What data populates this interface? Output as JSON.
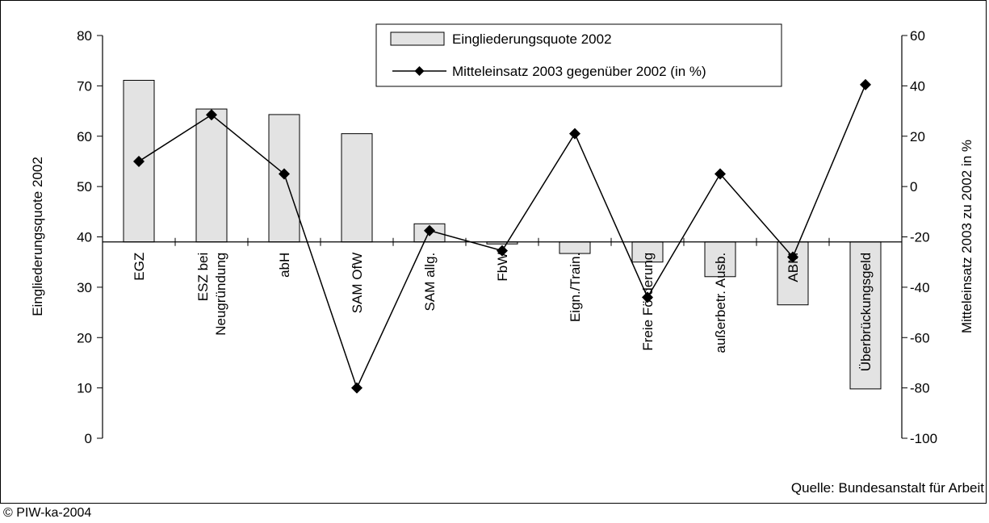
{
  "source": "Quelle: Bundesanstalt für Arbeit",
  "copyright": "© PIW-ka-2004",
  "colors": {
    "bar_fill": "#e3e3e3",
    "line": "#000000",
    "axis": "#000000"
  },
  "chart_data": {
    "type": "bar",
    "categories": [
      "EGZ",
      "ESZ bei Neugründung",
      "abH",
      "SAM OfW",
      "SAM allg.",
      "FbW",
      "Eign./Train.",
      "Freie Förderung",
      "außerbetr. Ausb.",
      "ABM",
      "Überbrückungsgeld"
    ],
    "category_label_lines": [
      [
        "EGZ"
      ],
      [
        "ESZ bei",
        "Neugründung"
      ],
      [
        "abH"
      ],
      [
        "SAM OfW"
      ],
      [
        "SAM allg."
      ],
      [
        "FbW"
      ],
      [
        "Eign./Train."
      ],
      [
        "Freie Förderung"
      ],
      [
        "außerbetr. Ausb."
      ],
      [
        "ABM"
      ],
      [
        "Überbrückungsgeld"
      ]
    ],
    "series": [
      {
        "name": "Eingliederungsquote 2002",
        "type": "bar",
        "axis": "left",
        "values": [
          71.1,
          65.4,
          64.3,
          60.5,
          42.6,
          38.6,
          36.7,
          35.0,
          32.1,
          26.5,
          9.8
        ]
      },
      {
        "name": "Mitteleinsatz 2003 gegenüber 2002 (in %)",
        "type": "line",
        "axis": "right",
        "marker": "diamond",
        "values": [
          10,
          28.5,
          5,
          -80,
          -17.5,
          -25.5,
          21,
          -44,
          5,
          -28,
          40.5
        ]
      }
    ],
    "ylabel_left": "Eingliederungsquote 2002",
    "ylabel_right": "Mitteleinsatz 2003 zu 2002 in %",
    "ylim_left": [
      0,
      80
    ],
    "yticks_left": [
      0,
      10,
      20,
      30,
      40,
      50,
      60,
      70,
      80
    ],
    "ylim_right": [
      -100,
      60
    ],
    "yticks_right": [
      -100,
      -80,
      -60,
      -40,
      -20,
      0,
      20,
      40,
      60
    ],
    "bar_baseline": 39,
    "grid": false,
    "legend_position": "top-center"
  }
}
